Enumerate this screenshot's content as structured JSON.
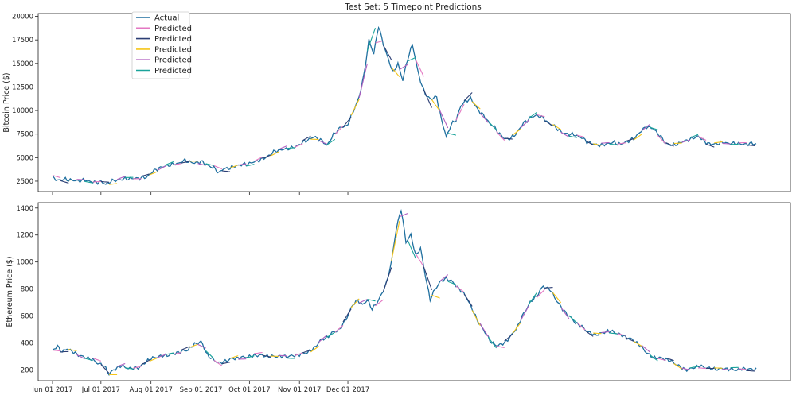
{
  "chart_data": {
    "type": "line",
    "title": "Test Set: 5 Timepoint Predictions",
    "x_tick_labels": [
      "Jun 01 2017",
      "Jul 01 2017",
      "Aug 01 2017",
      "Sep 01 2017",
      "Oct 01 2017",
      "Nov 01 2017",
      "Dec 01 2017"
    ],
    "legend": {
      "placement": "upper-left",
      "entries": [
        {
          "label": "Actual",
          "color": "#1f6f9f"
        },
        {
          "label": "Predicted",
          "color": "#e377c2"
        },
        {
          "label": "Predicted",
          "color": "#2c3e74"
        },
        {
          "label": "Predicted",
          "color": "#f5c518"
        },
        {
          "label": "Predicted",
          "color": "#b05fc0"
        },
        {
          "label": "Predicted",
          "color": "#1aa39a"
        }
      ]
    },
    "panels": [
      {
        "id": "btc",
        "ylabel": "Bitcoin Price ($)",
        "ylim": [
          1400,
          20300
        ],
        "yticks": [
          2500,
          5000,
          7500,
          10000,
          12500,
          15000,
          17500,
          20000
        ],
        "actual_anchors": [
          [
            0,
            2900
          ],
          [
            3,
            2600
          ],
          [
            8,
            2700
          ],
          [
            14,
            2550
          ],
          [
            21,
            2600
          ],
          [
            26,
            2350
          ],
          [
            30,
            2450
          ],
          [
            33,
            2150
          ],
          [
            36,
            2500
          ],
          [
            40,
            2600
          ],
          [
            45,
            2750
          ],
          [
            52,
            2800
          ],
          [
            58,
            2900
          ],
          [
            62,
            3500
          ],
          [
            66,
            3900
          ],
          [
            72,
            4200
          ],
          [
            78,
            4400
          ],
          [
            82,
            4700
          ],
          [
            88,
            4400
          ],
          [
            92,
            4600
          ],
          [
            96,
            4200
          ],
          [
            100,
            3900
          ],
          [
            103,
            3400
          ],
          [
            106,
            3800
          ],
          [
            110,
            3900
          ],
          [
            115,
            4200
          ],
          [
            120,
            4300
          ],
          [
            126,
            4600
          ],
          [
            132,
            5000
          ],
          [
            138,
            5700
          ],
          [
            144,
            5900
          ],
          [
            150,
            6100
          ],
          [
            156,
            6700
          ],
          [
            162,
            7200
          ],
          [
            166,
            6900
          ],
          [
            170,
            6300
          ],
          [
            174,
            7400
          ],
          [
            178,
            8200
          ],
          [
            182,
            8300
          ],
          [
            186,
            9700
          ],
          [
            190,
            11500
          ],
          [
            193,
            13800
          ],
          [
            196,
            17500
          ],
          [
            199,
            16000
          ],
          [
            202,
            19000
          ],
          [
            205,
            17000
          ],
          [
            208,
            15500
          ],
          [
            211,
            14000
          ],
          [
            214,
            15000
          ],
          [
            217,
            13200
          ],
          [
            220,
            15500
          ],
          [
            223,
            17000
          ],
          [
            226,
            14500
          ],
          [
            229,
            12500
          ],
          [
            232,
            11500
          ],
          [
            235,
            11200
          ],
          [
            238,
            11500
          ],
          [
            241,
            9000
          ],
          [
            244,
            7200
          ],
          [
            247,
            8500
          ],
          [
            250,
            9000
          ],
          [
            253,
            10500
          ],
          [
            256,
            11000
          ],
          [
            259,
            11300
          ],
          [
            262,
            10500
          ],
          [
            265,
            9800
          ],
          [
            268,
            9300
          ],
          [
            271,
            8600
          ],
          [
            274,
            8200
          ],
          [
            277,
            7500
          ],
          [
            280,
            7000
          ],
          [
            283,
            7000
          ],
          [
            286,
            7300
          ],
          [
            289,
            8000
          ],
          [
            292,
            8700
          ],
          [
            296,
            9200
          ],
          [
            300,
            9500
          ],
          [
            304,
            9200
          ],
          [
            308,
            8600
          ],
          [
            312,
            8200
          ],
          [
            316,
            7600
          ],
          [
            320,
            7500
          ],
          [
            324,
            7400
          ],
          [
            328,
            7100
          ],
          [
            332,
            6600
          ],
          [
            336,
            6400
          ],
          [
            340,
            6300
          ],
          [
            344,
            6500
          ],
          [
            348,
            6600
          ],
          [
            352,
            6400
          ],
          [
            356,
            6700
          ],
          [
            360,
            7000
          ],
          [
            364,
            7700
          ],
          [
            368,
            8300
          ],
          [
            372,
            8100
          ],
          [
            376,
            7400
          ],
          [
            380,
            6500
          ],
          [
            384,
            6300
          ],
          [
            388,
            6500
          ],
          [
            392,
            6800
          ],
          [
            396,
            7000
          ],
          [
            400,
            7300
          ],
          [
            404,
            6700
          ],
          [
            408,
            6400
          ],
          [
            412,
            6500
          ],
          [
            416,
            6600
          ],
          [
            420,
            6500
          ],
          [
            424,
            6500
          ],
          [
            428,
            6400
          ],
          [
            432,
            6500
          ],
          [
            436,
            6450
          ]
        ]
      },
      {
        "id": "eth",
        "ylabel": "Ethereum Price ($)",
        "ylim": [
          120,
          1440
        ],
        "yticks": [
          200,
          400,
          600,
          800,
          1000,
          1200,
          1400
        ],
        "actual_anchors": [
          [
            0,
            340
          ],
          [
            3,
            380
          ],
          [
            6,
            330
          ],
          [
            9,
            360
          ],
          [
            13,
            330
          ],
          [
            18,
            300
          ],
          [
            24,
            280
          ],
          [
            28,
            250
          ],
          [
            32,
            230
          ],
          [
            35,
            170
          ],
          [
            38,
            200
          ],
          [
            42,
            230
          ],
          [
            48,
            210
          ],
          [
            54,
            220
          ],
          [
            60,
            280
          ],
          [
            66,
            300
          ],
          [
            72,
            310
          ],
          [
            78,
            330
          ],
          [
            84,
            350
          ],
          [
            88,
            390
          ],
          [
            92,
            410
          ],
          [
            96,
            310
          ],
          [
            100,
            270
          ],
          [
            104,
            250
          ],
          [
            110,
            280
          ],
          [
            116,
            290
          ],
          [
            122,
            300
          ],
          [
            128,
            310
          ],
          [
            134,
            300
          ],
          [
            140,
            300
          ],
          [
            146,
            300
          ],
          [
            152,
            310
          ],
          [
            158,
            330
          ],
          [
            162,
            360
          ],
          [
            166,
            420
          ],
          [
            170,
            440
          ],
          [
            174,
            480
          ],
          [
            178,
            500
          ],
          [
            182,
            580
          ],
          [
            186,
            680
          ],
          [
            189,
            720
          ],
          [
            192,
            680
          ],
          [
            195,
            720
          ],
          [
            198,
            650
          ],
          [
            201,
            700
          ],
          [
            204,
            760
          ],
          [
            207,
            850
          ],
          [
            210,
            1000
          ],
          [
            213,
            1250
          ],
          [
            216,
            1390
          ],
          [
            219,
            1150
          ],
          [
            222,
            1200
          ],
          [
            225,
            1050
          ],
          [
            228,
            1100
          ],
          [
            231,
            900
          ],
          [
            234,
            720
          ],
          [
            237,
            800
          ],
          [
            240,
            850
          ],
          [
            244,
            880
          ],
          [
            248,
            850
          ],
          [
            252,
            800
          ],
          [
            256,
            750
          ],
          [
            260,
            650
          ],
          [
            264,
            550
          ],
          [
            268,
            480
          ],
          [
            272,
            400
          ],
          [
            276,
            380
          ],
          [
            280,
            400
          ],
          [
            284,
            450
          ],
          [
            288,
            520
          ],
          [
            292,
            620
          ],
          [
            296,
            700
          ],
          [
            300,
            750
          ],
          [
            304,
            820
          ],
          [
            308,
            800
          ],
          [
            312,
            720
          ],
          [
            316,
            650
          ],
          [
            320,
            600
          ],
          [
            324,
            550
          ],
          [
            328,
            520
          ],
          [
            332,
            480
          ],
          [
            336,
            460
          ],
          [
            340,
            470
          ],
          [
            344,
            490
          ],
          [
            348,
            480
          ],
          [
            352,
            460
          ],
          [
            356,
            440
          ],
          [
            360,
            420
          ],
          [
            364,
            380
          ],
          [
            368,
            330
          ],
          [
            372,
            290
          ],
          [
            376,
            290
          ],
          [
            380,
            280
          ],
          [
            384,
            260
          ],
          [
            388,
            230
          ],
          [
            392,
            200
          ],
          [
            396,
            210
          ],
          [
            400,
            230
          ],
          [
            404,
            220
          ],
          [
            408,
            210
          ],
          [
            412,
            205
          ],
          [
            416,
            210
          ],
          [
            420,
            205
          ],
          [
            424,
            200
          ],
          [
            428,
            210
          ],
          [
            432,
            205
          ],
          [
            436,
            205
          ]
        ]
      }
    ]
  }
}
